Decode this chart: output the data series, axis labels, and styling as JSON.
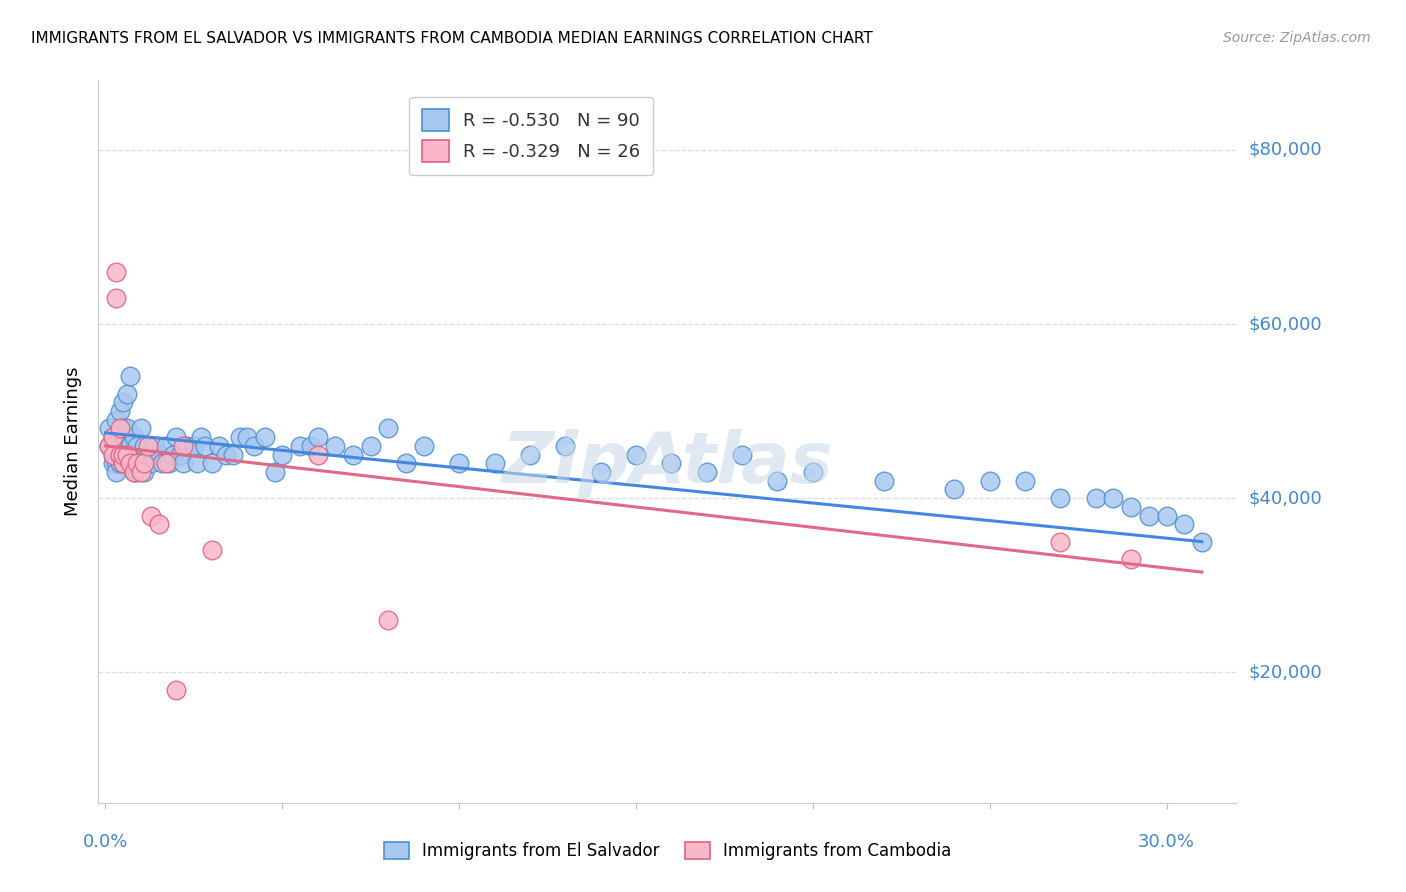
{
  "title": "IMMIGRANTS FROM EL SALVADOR VS IMMIGRANTS FROM CAMBODIA MEDIAN EARNINGS CORRELATION CHART",
  "source": "Source: ZipAtlas.com",
  "ylabel": "Median Earnings",
  "y_ticks": [
    20000,
    40000,
    60000,
    80000
  ],
  "y_tick_labels": [
    "$20,000",
    "$40,000",
    "$60,000",
    "$80,000"
  ],
  "y_min": 5000,
  "y_max": 88000,
  "x_min": -0.002,
  "x_max": 0.32,
  "legend_r1": "-0.530",
  "legend_n1": "90",
  "legend_r2": "-0.329",
  "legend_n2": "26",
  "color_blue_fill": "#a8c8f0",
  "color_blue_edge": "#5090d0",
  "color_pink_fill": "#f8b8c8",
  "color_pink_edge": "#e06080",
  "color_blue_line": "#4488dd",
  "color_pink_line": "#e06888",
  "color_axis_labels": "#4488cc",
  "color_grid": "#dddddd",
  "watermark": "ZipAtlas",
  "blue_scatter_x": [
    0.001,
    0.001,
    0.002,
    0.002,
    0.002,
    0.003,
    0.003,
    0.003,
    0.003,
    0.004,
    0.004,
    0.004,
    0.004,
    0.005,
    0.005,
    0.005,
    0.005,
    0.006,
    0.006,
    0.006,
    0.007,
    0.007,
    0.007,
    0.008,
    0.008,
    0.008,
    0.009,
    0.009,
    0.01,
    0.01,
    0.011,
    0.011,
    0.012,
    0.013,
    0.014,
    0.015,
    0.016,
    0.017,
    0.018,
    0.019,
    0.02,
    0.021,
    0.022,
    0.023,
    0.025,
    0.026,
    0.027,
    0.028,
    0.03,
    0.032,
    0.034,
    0.036,
    0.038,
    0.04,
    0.042,
    0.045,
    0.048,
    0.05,
    0.055,
    0.058,
    0.06,
    0.065,
    0.07,
    0.075,
    0.08,
    0.085,
    0.09,
    0.1,
    0.11,
    0.12,
    0.13,
    0.14,
    0.15,
    0.16,
    0.17,
    0.18,
    0.19,
    0.2,
    0.22,
    0.24,
    0.25,
    0.26,
    0.27,
    0.28,
    0.285,
    0.29,
    0.295,
    0.3,
    0.305,
    0.31
  ],
  "blue_scatter_y": [
    46000,
    48000,
    44000,
    47000,
    45000,
    49000,
    46000,
    44000,
    43000,
    50000,
    47000,
    46000,
    44000,
    51000,
    48000,
    46000,
    44000,
    52000,
    48000,
    45000,
    54000,
    46000,
    44000,
    47000,
    45000,
    43000,
    46000,
    43000,
    48000,
    44000,
    46000,
    43000,
    45000,
    44000,
    46000,
    45000,
    44000,
    46000,
    44000,
    45000,
    47000,
    45000,
    44000,
    46000,
    46000,
    44000,
    47000,
    46000,
    44000,
    46000,
    45000,
    45000,
    47000,
    47000,
    46000,
    47000,
    43000,
    45000,
    46000,
    46000,
    47000,
    46000,
    45000,
    46000,
    48000,
    44000,
    46000,
    44000,
    44000,
    45000,
    46000,
    43000,
    45000,
    44000,
    43000,
    45000,
    42000,
    43000,
    42000,
    41000,
    42000,
    42000,
    40000,
    40000,
    40000,
    39000,
    38000,
    38000,
    37000,
    35000
  ],
  "pink_scatter_x": [
    0.001,
    0.002,
    0.002,
    0.003,
    0.003,
    0.004,
    0.004,
    0.005,
    0.005,
    0.006,
    0.007,
    0.008,
    0.009,
    0.01,
    0.011,
    0.012,
    0.013,
    0.015,
    0.017,
    0.02,
    0.022,
    0.03,
    0.06,
    0.08,
    0.27,
    0.29
  ],
  "pink_scatter_y": [
    46000,
    47000,
    45000,
    63000,
    66000,
    45000,
    48000,
    44000,
    45000,
    45000,
    44000,
    43000,
    44000,
    43000,
    44000,
    46000,
    38000,
    37000,
    44000,
    18000,
    46000,
    34000,
    45000,
    26000,
    35000,
    33000
  ],
  "blue_line_x0": 0.0,
  "blue_line_x1": 0.31,
  "blue_line_y0": 47500,
  "blue_line_y1": 35000,
  "pink_line_x0": 0.0,
  "pink_line_x1": 0.31,
  "pink_line_y0": 46000,
  "pink_line_y1": 31500
}
